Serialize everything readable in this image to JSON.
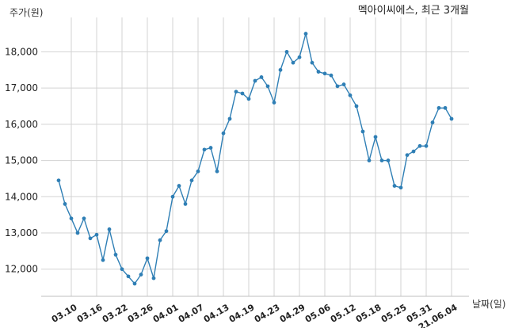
{
  "chart_data": {
    "type": "line",
    "title": "멕아이씨에스, 최근 3개월",
    "xlabel": "날짜(일)",
    "ylabel": "주가(원)",
    "ylim": [
      11250,
      18950
    ],
    "yticks": [
      12000,
      13000,
      14000,
      15000,
      16000,
      17000,
      18000
    ],
    "ytick_labels": [
      "12,000",
      "13,000",
      "14,000",
      "15,000",
      "16,000",
      "17,000",
      "18,000"
    ],
    "xtick_labels": [
      "03.10",
      "03.16",
      "03.22",
      "03.26",
      "04.01",
      "04.07",
      "04.13",
      "04.19",
      "04.23",
      "04.29",
      "05.06",
      "05.12",
      "05.18",
      "05.25",
      "05.31",
      "21.06.04"
    ],
    "xtick_index": [
      2,
      6,
      10,
      14,
      18,
      22,
      26,
      30,
      34,
      38,
      42,
      46,
      50,
      54,
      58,
      62
    ],
    "grid": true,
    "color": "#2f7fb5",
    "series": [
      {
        "values": [
          14450,
          13800,
          13400,
          13000,
          13400,
          12850,
          12950,
          12250,
          13100,
          12400,
          12000,
          11800,
          11600,
          11850,
          12300,
          11750,
          12800,
          13050,
          14000,
          14300,
          13800,
          14450,
          14700,
          15300,
          15350,
          14700,
          15750,
          16150,
          16900,
          16850,
          16700,
          17200,
          17300,
          17050,
          16600,
          17500,
          18000,
          17700,
          17850,
          18500,
          17700,
          17450,
          17400,
          17350,
          17050,
          17100,
          16800,
          16500,
          15800,
          15000,
          15650,
          15000,
          15000,
          14300,
          14250,
          15150,
          15250,
          15400,
          15400,
          16050,
          16450,
          16450,
          16150
        ]
      }
    ]
  }
}
